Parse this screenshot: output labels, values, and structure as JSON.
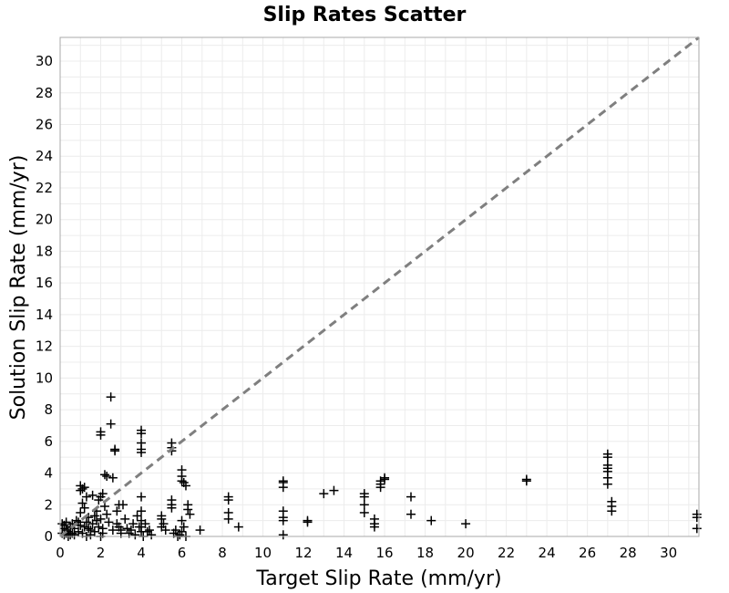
{
  "chart_data": {
    "type": "scatter",
    "title": "Slip Rates Scatter",
    "xlabel": "Target Slip Rate (mm/yr)",
    "ylabel": "Solution Slip Rate (mm/yr)",
    "xlim": [
      0,
      31.5
    ],
    "ylim": [
      0,
      31.5
    ],
    "xticks": [
      "0",
      "2",
      "4",
      "6",
      "8",
      "10",
      "12",
      "14",
      "16",
      "18",
      "20",
      "22",
      "24",
      "26",
      "28",
      "30"
    ],
    "yticks": [
      "0",
      "2",
      "4",
      "6",
      "8",
      "10",
      "12",
      "14",
      "16",
      "18",
      "20",
      "22",
      "24",
      "26",
      "28",
      "30"
    ],
    "grid": true,
    "marker": "plus",
    "marker_color": "#000000",
    "reference_line": {
      "style": "dashed",
      "color": "#7f7f7f",
      "x": [
        0,
        31.5
      ],
      "y": [
        0,
        31.5
      ]
    },
    "points": [
      [
        0.1,
        0.8
      ],
      [
        0.2,
        0.5
      ],
      [
        0.3,
        0.9
      ],
      [
        0.1,
        0.2
      ],
      [
        0.4,
        0.3
      ],
      [
        0.5,
        0.6
      ],
      [
        0.2,
        0.1
      ],
      [
        0.6,
        0.2
      ],
      [
        0.3,
        0.4
      ],
      [
        0.7,
        0.5
      ],
      [
        0.8,
        1.0
      ],
      [
        0.9,
        0.3
      ],
      [
        0.5,
        0.1
      ],
      [
        1.0,
        0.7
      ],
      [
        0.4,
        0.0
      ],
      [
        0.6,
        0.8
      ],
      [
        0.7,
        0.1
      ],
      [
        0.9,
        0.9
      ],
      [
        0.2,
        0.7
      ],
      [
        0.3,
        0.2
      ],
      [
        1.0,
        3.2
      ],
      [
        1.1,
        3.0
      ],
      [
        1.0,
        2.9
      ],
      [
        1.2,
        3.1
      ],
      [
        1.3,
        2.5
      ],
      [
        1.1,
        2.1
      ],
      [
        1.0,
        1.5
      ],
      [
        1.2,
        1.8
      ],
      [
        1.4,
        1.2
      ],
      [
        1.3,
        0.9
      ],
      [
        1.5,
        0.4
      ],
      [
        1.6,
        0.8
      ],
      [
        1.1,
        0.2
      ],
      [
        1.7,
        1.3
      ],
      [
        1.8,
        1.0
      ],
      [
        1.5,
        0.1
      ],
      [
        1.9,
        0.6
      ],
      [
        1.7,
        0.3
      ],
      [
        1.4,
        0.5
      ],
      [
        1.6,
        2.6
      ],
      [
        1.8,
        1.6
      ],
      [
        1.9,
        2.3
      ],
      [
        2.0,
        1.1
      ],
      [
        1.3,
        0.0
      ],
      [
        1.2,
        0.6
      ],
      [
        2.0,
        6.6
      ],
      [
        2.0,
        6.4
      ],
      [
        2.1,
        2.7
      ],
      [
        2.0,
        2.5
      ],
      [
        2.2,
        3.9
      ],
      [
        2.3,
        3.8
      ],
      [
        2.1,
        0.5
      ],
      [
        2.2,
        1.9
      ],
      [
        2.3,
        1.4
      ],
      [
        2.4,
        0.9
      ],
      [
        2.1,
        0.2
      ],
      [
        2.0,
        0.0
      ],
      [
        2.5,
        8.8
      ],
      [
        2.5,
        7.1
      ],
      [
        2.6,
        3.7
      ],
      [
        2.7,
        5.5
      ],
      [
        2.7,
        5.4
      ],
      [
        2.8,
        0.8
      ],
      [
        2.6,
        0.4
      ],
      [
        2.9,
        2.0
      ],
      [
        2.8,
        1.6
      ],
      [
        3.0,
        0.2
      ],
      [
        2.9,
        0.6
      ],
      [
        3.1,
        2.0
      ],
      [
        3.2,
        1.1
      ],
      [
        3.0,
        0.4
      ],
      [
        3.3,
        0.5
      ],
      [
        3.4,
        0.2
      ],
      [
        3.5,
        0.4
      ],
      [
        3.6,
        0.8
      ],
      [
        3.7,
        0.1
      ],
      [
        3.8,
        1.3
      ],
      [
        3.9,
        0.6
      ],
      [
        4.0,
        6.7
      ],
      [
        4.0,
        6.5
      ],
      [
        4.0,
        5.9
      ],
      [
        4.0,
        5.5
      ],
      [
        4.0,
        5.3
      ],
      [
        4.0,
        2.5
      ],
      [
        4.0,
        1.6
      ],
      [
        4.0,
        1.0
      ],
      [
        4.0,
        0.6
      ],
      [
        4.0,
        0.3
      ],
      [
        4.1,
        0.0
      ],
      [
        4.3,
        0.3
      ],
      [
        4.5,
        0.1
      ],
      [
        4.2,
        0.8
      ],
      [
        4.4,
        0.4
      ],
      [
        5.0,
        1.3
      ],
      [
        5.0,
        1.1
      ],
      [
        5.1,
        0.8
      ],
      [
        5.0,
        0.6
      ],
      [
        5.2,
        0.4
      ],
      [
        5.5,
        5.9
      ],
      [
        5.5,
        5.6
      ],
      [
        5.5,
        5.4
      ],
      [
        5.5,
        2.3
      ],
      [
        5.5,
        2.0
      ],
      [
        5.5,
        1.8
      ],
      [
        5.6,
        0.2
      ],
      [
        5.8,
        0.0
      ],
      [
        5.7,
        0.4
      ],
      [
        6.0,
        4.2
      ],
      [
        6.0,
        3.8
      ],
      [
        6.0,
        3.5
      ],
      [
        6.1,
        3.4
      ],
      [
        6.2,
        3.2
      ],
      [
        6.0,
        1.0
      ],
      [
        6.1,
        0.6
      ],
      [
        6.0,
        0.3
      ],
      [
        5.9,
        0.1
      ],
      [
        6.3,
        2.0
      ],
      [
        6.3,
        1.7
      ],
      [
        6.4,
        1.4
      ],
      [
        6.2,
        0.0
      ],
      [
        6.9,
        0.4
      ],
      [
        8.3,
        2.5
      ],
      [
        8.3,
        2.3
      ],
      [
        8.3,
        1.5
      ],
      [
        8.3,
        1.1
      ],
      [
        8.8,
        0.6
      ],
      [
        11.0,
        3.5
      ],
      [
        11.0,
        3.4
      ],
      [
        11.0,
        3.1
      ],
      [
        11.0,
        1.6
      ],
      [
        11.0,
        1.2
      ],
      [
        11.0,
        1.0
      ],
      [
        11.0,
        0.1
      ],
      [
        12.2,
        1.0
      ],
      [
        12.2,
        0.9
      ],
      [
        13.0,
        2.7
      ],
      [
        13.5,
        2.9
      ],
      [
        15.0,
        2.7
      ],
      [
        15.0,
        2.5
      ],
      [
        15.0,
        2.0
      ],
      [
        15.0,
        1.5
      ],
      [
        15.5,
        1.1
      ],
      [
        15.5,
        0.8
      ],
      [
        15.5,
        0.6
      ],
      [
        15.8,
        3.5
      ],
      [
        15.8,
        3.3
      ],
      [
        15.8,
        3.1
      ],
      [
        16.0,
        3.7
      ],
      [
        16.0,
        3.6
      ],
      [
        17.3,
        2.5
      ],
      [
        17.3,
        1.4
      ],
      [
        18.3,
        1.0
      ],
      [
        20.0,
        0.8
      ],
      [
        23.0,
        3.6
      ],
      [
        23.0,
        3.5
      ],
      [
        27.0,
        5.2
      ],
      [
        27.0,
        5.0
      ],
      [
        27.0,
        4.5
      ],
      [
        27.0,
        4.3
      ],
      [
        27.0,
        4.1
      ],
      [
        27.0,
        3.7
      ],
      [
        27.0,
        3.3
      ],
      [
        27.2,
        2.2
      ],
      [
        27.2,
        1.9
      ],
      [
        27.2,
        1.6
      ],
      [
        31.4,
        1.4
      ],
      [
        31.4,
        1.2
      ],
      [
        31.4,
        0.5
      ]
    ]
  }
}
